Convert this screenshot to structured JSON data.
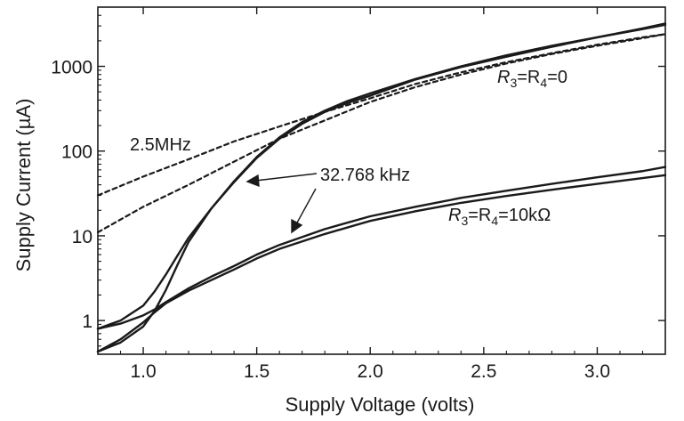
{
  "chart_data": {
    "type": "line",
    "xlabel": "Supply Voltage (volts)",
    "ylabel": "Supply Current (µA)",
    "xlim": [
      0.8,
      3.3
    ],
    "ylim": [
      0.4,
      5000
    ],
    "yscale": "log",
    "grid": false,
    "x_ticks": [
      1.0,
      1.5,
      2.0,
      2.5,
      3.0
    ],
    "x_tick_labels": [
      "1.0",
      "1.5",
      "2.0",
      "2.5",
      "3.0"
    ],
    "y_ticks": [
      1,
      10,
      100,
      1000
    ],
    "y_tick_labels": [
      "1",
      "10",
      "100",
      "1000"
    ],
    "series": [
      {
        "style": "solid",
        "x": [
          0.8,
          0.9,
          1.0,
          1.05,
          1.1,
          1.15,
          1.2,
          1.3,
          1.4,
          1.5,
          1.6,
          1.7,
          1.8,
          1.9,
          2.0,
          2.2,
          2.4,
          2.6,
          2.8,
          3.0,
          3.2,
          3.3
        ],
        "values": [
          0.43,
          0.55,
          0.85,
          1.3,
          2.3,
          4.5,
          8.5,
          21,
          44,
          85,
          145,
          220,
          300,
          390,
          480,
          710,
          1000,
          1350,
          1750,
          2200,
          2800,
          3200
        ]
      },
      {
        "style": "solid",
        "x": [
          0.8,
          0.9,
          1.0,
          1.05,
          1.1,
          1.15,
          1.2,
          1.3,
          1.4,
          1.5,
          1.6,
          1.7,
          1.8,
          1.9,
          2.0,
          2.2,
          2.4,
          2.6,
          2.8,
          3.0,
          3.2,
          3.3
        ],
        "values": [
          0.8,
          1.0,
          1.5,
          2.2,
          3.5,
          5.8,
          9.5,
          21,
          43,
          83,
          140,
          210,
          290,
          370,
          450,
          700,
          980,
          1300,
          1700,
          2200,
          2750,
          3100
        ]
      },
      {
        "style": "dashed",
        "label": "2.5MHz",
        "x": [
          0.8,
          1.0,
          1.2,
          1.4,
          1.6,
          1.8,
          2.0,
          2.2,
          2.4,
          2.6,
          2.8,
          3.0,
          3.2,
          3.3
        ],
        "values": [
          30,
          50,
          80,
          130,
          195,
          290,
          420,
          620,
          850,
          1120,
          1430,
          1800,
          2200,
          2400
        ]
      },
      {
        "style": "dashed",
        "x": [
          0.8,
          1.0,
          1.2,
          1.4,
          1.6,
          1.8,
          2.0,
          2.2,
          2.4,
          2.6,
          2.8,
          3.0,
          3.2,
          3.3
        ],
        "values": [
          11,
          22,
          40,
          75,
          140,
          230,
          380,
          570,
          800,
          1080,
          1400,
          1750,
          2150,
          2400
        ]
      },
      {
        "style": "solid",
        "x": [
          0.8,
          0.9,
          1.0,
          1.05,
          1.1,
          1.2,
          1.3,
          1.4,
          1.5,
          1.6,
          1.8,
          2.0,
          2.2,
          2.4,
          2.6,
          2.8,
          3.0,
          3.2,
          3.3
        ],
        "values": [
          0.8,
          0.92,
          1.15,
          1.35,
          1.65,
          2.4,
          3.3,
          4.4,
          6.0,
          7.8,
          12,
          17,
          22,
          28,
          34,
          41,
          49,
          58,
          65
        ]
      },
      {
        "style": "solid",
        "x": [
          0.8,
          0.9,
          1.0,
          1.05,
          1.1,
          1.2,
          1.3,
          1.4,
          1.5,
          1.6,
          1.8,
          2.0,
          2.2,
          2.4,
          2.6,
          2.8,
          3.0,
          3.2,
          3.3
        ],
        "values": [
          0.43,
          0.6,
          0.95,
          1.25,
          1.6,
          2.25,
          3.0,
          4.0,
          5.4,
          7.0,
          10.5,
          15,
          19.5,
          24.5,
          29.5,
          35,
          41,
          48,
          52
        ]
      }
    ],
    "annotations": [
      "2.5MHz",
      "32.768 kHz",
      "R3=R4=0",
      "R3=R4=10kΩ"
    ]
  },
  "labels": {
    "freq_high": "2.5MHz",
    "freq_low": "32.768 kHz",
    "r_zero": {
      "r3": "R",
      "sub3": "3",
      "r4": "=R",
      "sub4": "4",
      "val": "=0"
    },
    "r_10k": {
      "r3": "R",
      "sub3": "3",
      "r4": "=R",
      "sub4": "4",
      "val": "=10kΩ"
    }
  }
}
